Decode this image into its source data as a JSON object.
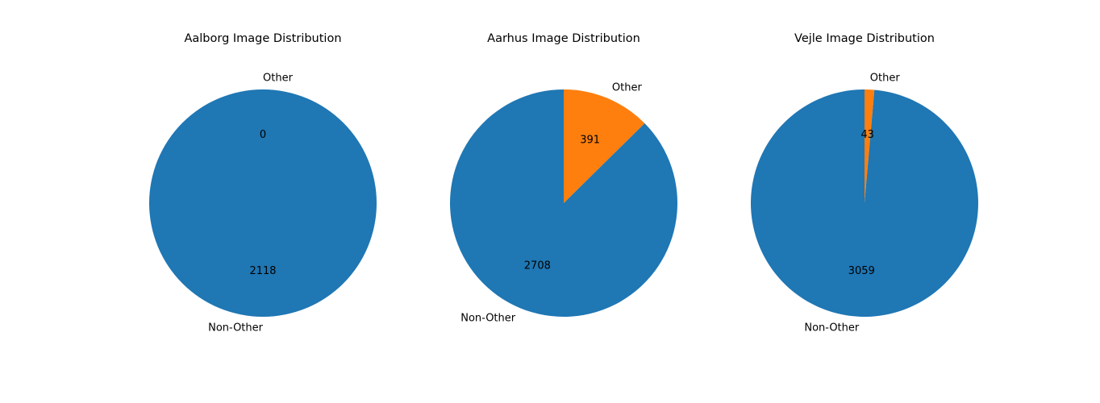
{
  "chart_data": [
    {
      "type": "pie",
      "title": "Aalborg Image Distribution",
      "slices": [
        {
          "label": "Other",
          "value": 0,
          "color": "#ff7f0e"
        },
        {
          "label": "Non-Other",
          "value": 2118,
          "color": "#1f77b4"
        }
      ],
      "start_angle_deg": 90,
      "direction": "counterclockwise"
    },
    {
      "type": "pie",
      "title": "Aarhus Image Distribution",
      "slices": [
        {
          "label": "Other",
          "value": 391,
          "color": "#ff7f0e"
        },
        {
          "label": "Non-Other",
          "value": 2708,
          "color": "#1f77b4"
        }
      ],
      "start_angle_deg": 90,
      "direction": "clockwise"
    },
    {
      "type": "pie",
      "title": "Vejle Image Distribution",
      "slices": [
        {
          "label": "Other",
          "value": 43,
          "color": "#ff7f0e"
        },
        {
          "label": "Non-Other",
          "value": 3059,
          "color": "#1f77b4"
        }
      ],
      "start_angle_deg": 90,
      "direction": "clockwise"
    }
  ]
}
